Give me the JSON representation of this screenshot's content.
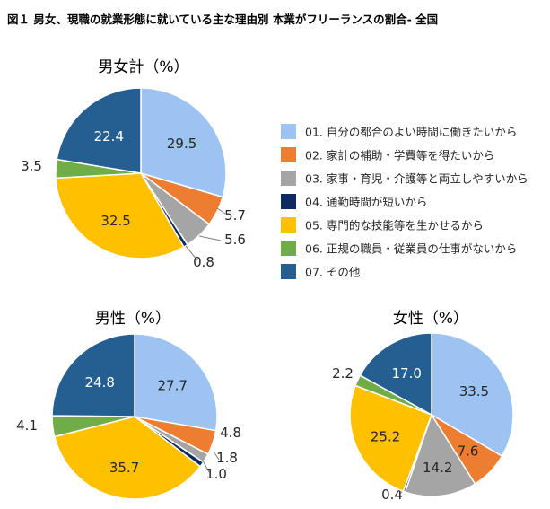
{
  "figure_title": "図１ 男女、現職の就業形態に就いている主な理由別 本業がフリーランスの割合- 全国",
  "chart_data": [
    {
      "type": "pie",
      "title": "男女計（%）",
      "categories": [
        "01. 自分の都合のよい時間に働きたいから",
        "02. 家計の補助・学費等を得たいから",
        "03. 家事・育児・介護等と両立しやすいから",
        "04. 通勤時間が短いから",
        "05. 専門的な技能等を生かせるから",
        "06. 正規の職員・従業員の仕事がないから",
        "07. その他"
      ],
      "values": [
        29.5,
        5.7,
        5.6,
        0.8,
        32.5,
        3.5,
        22.4
      ],
      "colors": [
        "#9DC3F2",
        "#ED7D31",
        "#A5A5A5",
        "#0E2A5E",
        "#FFC000",
        "#70AD47",
        "#255E91"
      ],
      "legend_position": "right"
    },
    {
      "type": "pie",
      "title": "男性（%）",
      "categories": [
        "01. 自分の都合のよい時間に働きたいから",
        "02. 家計の補助・学費等を得たいから",
        "03. 家事・育児・介護等と両立しやすいから",
        "04. 通勤時間が短いから",
        "05. 専門的な技能等を生かせるから",
        "06. 正規の職員・従業員の仕事がないから",
        "07. その他"
      ],
      "values": [
        27.7,
        4.8,
        1.8,
        1.0,
        35.7,
        4.1,
        24.8
      ],
      "colors": [
        "#9DC3F2",
        "#ED7D31",
        "#A5A5A5",
        "#0E2A5E",
        "#FFC000",
        "#70AD47",
        "#255E91"
      ]
    },
    {
      "type": "pie",
      "title": "女性（%）",
      "categories": [
        "01. 自分の都合のよい時間に働きたいから",
        "02. 家計の補助・学費等を得たいから",
        "03. 家事・育児・介護等と両立しやすいから",
        "04. 通勤時間が短いから",
        "05. 専門的な技能等を生かせるから",
        "06. 正規の職員・従業員の仕事がないから",
        "07. その他"
      ],
      "values": [
        33.5,
        7.6,
        14.2,
        0.4,
        25.2,
        2.2,
        17.0
      ],
      "colors": [
        "#9DC3F2",
        "#ED7D31",
        "#A5A5A5",
        "#0E2A5E",
        "#FFC000",
        "#70AD47",
        "#255E91"
      ]
    }
  ]
}
